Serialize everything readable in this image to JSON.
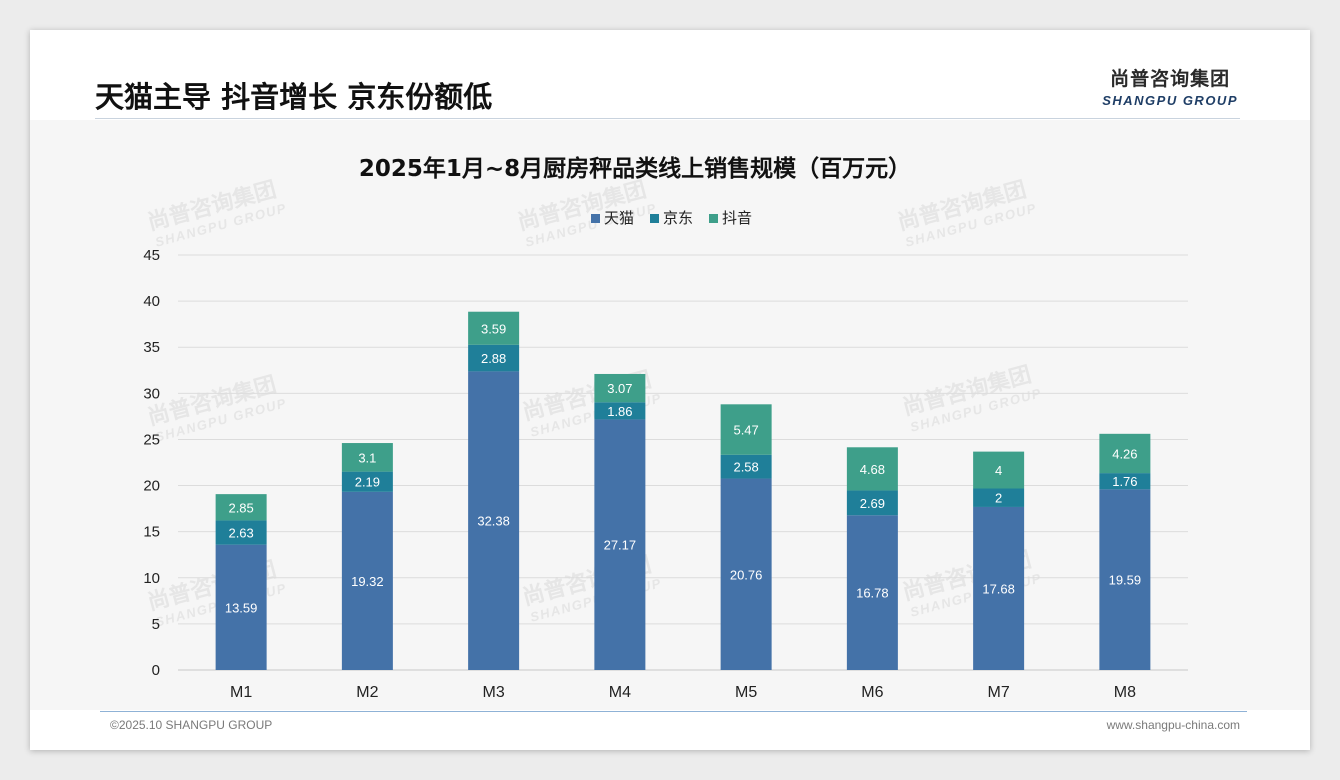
{
  "header": {
    "title": "天猫主导 抖音增长 京东份额低",
    "logo_cn": "尚普咨询集团",
    "logo_en": "SHANGPU GROUP"
  },
  "watermark": {
    "cn": "尚普咨询集团",
    "en": "SHANGPU GROUP"
  },
  "footer": {
    "copyright": "©2025.10 SHANGPU GROUP",
    "website": "www.shangpu-china.com"
  },
  "colors": {
    "tmall": "#4472a8",
    "jd": "#1f7f99",
    "douyin": "#3e9f8a"
  },
  "chart_data": {
    "type": "bar",
    "stacked": true,
    "title": "2025年1月~8月厨房秤品类线上销售规模（百万元）",
    "xlabel": "",
    "ylabel": "",
    "categories": [
      "M1",
      "M2",
      "M3",
      "M4",
      "M5",
      "M6",
      "M7",
      "M8"
    ],
    "ylim": [
      0,
      45
    ],
    "yticks": [
      0,
      5,
      10,
      15,
      20,
      25,
      30,
      35,
      40,
      45
    ],
    "legend_position": "top",
    "series": [
      {
        "name": "天猫",
        "color": "#4472a8",
        "values": [
          13.59,
          19.32,
          32.38,
          27.17,
          20.76,
          16.78,
          17.68,
          19.59
        ],
        "labels": [
          "13.59",
          "19.32",
          "32.38",
          "27.17",
          "20.76",
          "16.78",
          "17.68",
          "19.59"
        ]
      },
      {
        "name": "京东",
        "color": "#1f7f99",
        "values": [
          2.63,
          2.19,
          2.88,
          1.86,
          2.58,
          2.69,
          2,
          1.76
        ],
        "labels": [
          "2.63",
          "2.19",
          "2.88",
          "1.86",
          "2.58",
          "2.69",
          "2",
          "1.76"
        ]
      },
      {
        "name": "抖音",
        "color": "#3e9f8a",
        "values": [
          2.85,
          3.1,
          3.59,
          3.07,
          5.47,
          4.68,
          4,
          4.26
        ],
        "labels": [
          "2.85",
          "3.1",
          "3.59",
          "3.07",
          "5.47",
          "4.68",
          "4",
          "4.26"
        ]
      }
    ]
  }
}
